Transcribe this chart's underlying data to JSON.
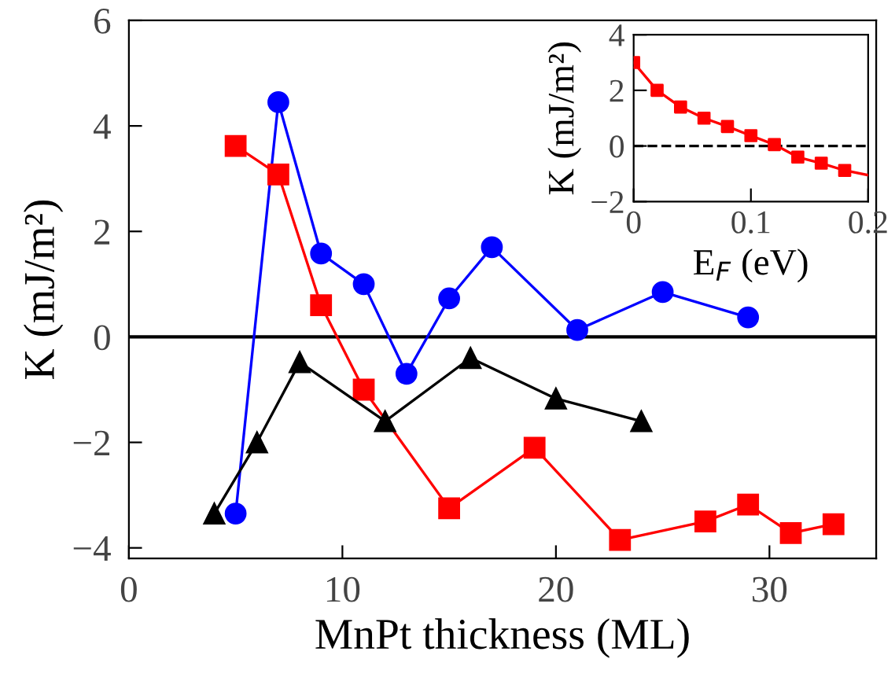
{
  "chart_data": [
    {
      "type": "line",
      "xlabel": "MnPt thickness (ML)",
      "ylabel": "K (mJ/m²)",
      "xlim": [
        0,
        35
      ],
      "ylim": [
        -4.2,
        6
      ],
      "xticks": [
        0,
        10,
        20,
        30
      ],
      "yticks": [
        -4,
        -2,
        0,
        2,
        4,
        6
      ],
      "grid": false,
      "legend": false,
      "series": [
        {
          "color": "#0000ff",
          "marker": "circle",
          "x": [
            5,
            7,
            9,
            11,
            13,
            15,
            17,
            21,
            25,
            29
          ],
          "values": [
            -3.35,
            4.45,
            1.58,
            1.0,
            -0.7,
            0.73,
            1.7,
            0.13,
            0.85,
            0.37
          ]
        },
        {
          "color": "#ff0000",
          "marker": "square",
          "x": [
            5,
            7,
            9,
            11,
            15,
            19,
            23,
            27,
            29,
            31,
            33
          ],
          "values": [
            3.62,
            3.08,
            0.6,
            -1.0,
            -3.25,
            -2.1,
            -3.85,
            -3.5,
            -3.18,
            -3.72,
            -3.55
          ]
        },
        {
          "color": "#000000",
          "marker": "triangle",
          "x": [
            4,
            6,
            8,
            12,
            16,
            20,
            24
          ],
          "values": [
            -3.35,
            -2.0,
            -0.48,
            -1.6,
            -0.4,
            -1.17,
            -1.6
          ]
        }
      ],
      "ref_lines": [
        {
          "axis": "y",
          "value": 0,
          "color": "#000000",
          "line_style": "solid"
        }
      ]
    },
    {
      "type": "line",
      "xlabel": "E$_{F}$ (eV)",
      "ylabel": "K (mJ/m²)",
      "xlim": [
        0,
        0.2
      ],
      "ylim": [
        -2,
        4
      ],
      "xticks": [
        0,
        0.1,
        0.2
      ],
      "yticks": [
        -2,
        0,
        2,
        4
      ],
      "grid": false,
      "legend": false,
      "series": [
        {
          "type": "line",
          "color": "#ff0000",
          "marker": "none",
          "x": [
            0,
            0.02,
            0.04,
            0.06,
            0.08,
            0.1,
            0.12,
            0.14,
            0.16,
            0.18,
            0.2
          ],
          "values": [
            3.0,
            2.0,
            1.4,
            1.0,
            0.7,
            0.37,
            0.05,
            -0.4,
            -0.62,
            -0.88,
            -1.05
          ]
        },
        {
          "type": "scatter",
          "color": "#ff0000",
          "marker": "square",
          "x": [
            0,
            0.02,
            0.04,
            0.06,
            0.08,
            0.1,
            0.12,
            0.14,
            0.16,
            0.18
          ],
          "values": [
            3.0,
            2.0,
            1.4,
            1.0,
            0.7,
            0.37,
            0.05,
            -0.4,
            -0.62,
            -0.88
          ]
        }
      ],
      "ref_lines": [
        {
          "axis": "y",
          "value": 0,
          "color": "#000000",
          "line_style": "dashed"
        }
      ]
    }
  ]
}
